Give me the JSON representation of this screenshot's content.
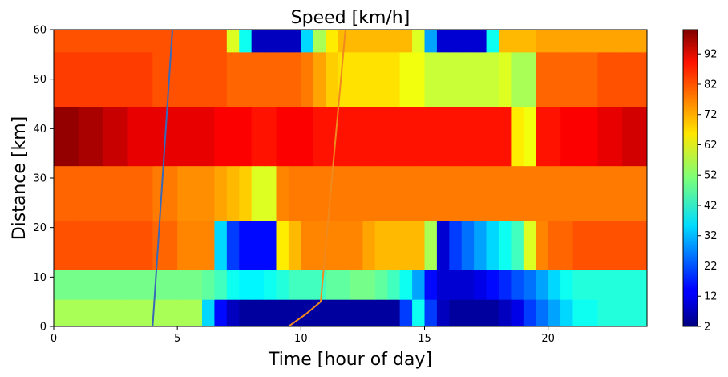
{
  "chart_data": {
    "type": "heatmap",
    "title": "Speed [km/h]",
    "xlabel": "Time [hour of day]",
    "ylabel": "Distance [km]",
    "xlim": [
      0,
      24
    ],
    "ylim": [
      0,
      60
    ],
    "x_ticks": [
      0,
      5,
      10,
      15,
      20
    ],
    "y_ticks": [
      0,
      10,
      20,
      30,
      40,
      50,
      60
    ],
    "colormap": "jet",
    "colorbar": {
      "range": [
        2,
        100
      ],
      "ticks": [
        2,
        12,
        22,
        32,
        42,
        52,
        62,
        72,
        82,
        92
      ]
    },
    "time_segments": [
      0,
      1,
      2,
      3,
      4,
      5,
      6,
      6.5,
      7,
      7.5,
      8,
      8.5,
      9,
      9.5,
      10,
      10.5,
      11,
      11.5,
      12,
      12.5,
      13,
      13.5,
      14,
      14.5,
      15,
      15.5,
      16,
      16.5,
      17,
      17.5,
      18,
      18.5,
      19,
      19.5,
      20,
      20.5,
      21,
      22,
      23,
      24
    ],
    "distance_bands": [
      0,
      5.5,
      11.5,
      21.5,
      32.5,
      44.5,
      55.5,
      60
    ],
    "speed_by_band": [
      {
        "band": "0-5.5 km",
        "values": [
          55,
          55,
          55,
          55,
          55,
          55,
          35,
          15,
          8,
          5,
          5,
          5,
          5,
          5,
          5,
          5,
          5,
          5,
          5,
          5,
          5,
          5,
          20,
          40,
          20,
          8,
          5,
          5,
          5,
          5,
          8,
          12,
          20,
          25,
          30,
          35,
          40,
          42,
          42
        ]
      },
      {
        "band": "5.5-11.5 km",
        "values": [
          50,
          50,
          50,
          50,
          50,
          50,
          48,
          45,
          40,
          38,
          38,
          40,
          42,
          45,
          45,
          45,
          48,
          48,
          50,
          50,
          48,
          45,
          40,
          30,
          15,
          10,
          10,
          10,
          12,
          15,
          18,
          22,
          25,
          30,
          35,
          40,
          42,
          42,
          42
        ]
      },
      {
        "band": "11.5-21.5 km",
        "values": [
          80,
          80,
          80,
          80,
          78,
          75,
          75,
          35,
          20,
          15,
          15,
          15,
          65,
          70,
          75,
          75,
          75,
          75,
          75,
          72,
          70,
          70,
          70,
          70,
          55,
          10,
          20,
          25,
          30,
          35,
          40,
          45,
          60,
          75,
          78,
          78,
          80,
          80,
          80
        ]
      },
      {
        "band": "21.5-32.5 km",
        "values": [
          78,
          78,
          78,
          78,
          76,
          74,
          74,
          72,
          70,
          68,
          60,
          60,
          75,
          76,
          76,
          76,
          76,
          76,
          76,
          76,
          76,
          76,
          76,
          76,
          76,
          76,
          76,
          76,
          76,
          76,
          76,
          76,
          76,
          76,
          76,
          76,
          76,
          76,
          76
        ]
      },
      {
        "band": "32.5-44.5 km",
        "values": [
          98,
          96,
          93,
          90,
          90,
          90,
          90,
          88,
          88,
          88,
          86,
          86,
          88,
          88,
          88,
          86,
          86,
          86,
          86,
          86,
          86,
          86,
          86,
          86,
          86,
          86,
          86,
          86,
          86,
          86,
          86,
          65,
          62,
          86,
          86,
          88,
          88,
          90,
          92
        ]
      },
      {
        "band": "44.5-55.5 km",
        "values": [
          82,
          82,
          82,
          82,
          80,
          80,
          80,
          80,
          78,
          78,
          78,
          78,
          78,
          78,
          76,
          72,
          68,
          66,
          66,
          66,
          66,
          66,
          62,
          62,
          58,
          58,
          58,
          58,
          58,
          58,
          60,
          55,
          55,
          78,
          78,
          78,
          78,
          80,
          80
        ]
      },
      {
        "band": "55.5-60 km",
        "values": [
          80,
          80,
          80,
          80,
          80,
          80,
          80,
          80,
          60,
          40,
          8,
          8,
          8,
          8,
          35,
          55,
          65,
          70,
          70,
          70,
          70,
          70,
          70,
          60,
          30,
          10,
          10,
          10,
          10,
          40,
          70,
          70,
          70,
          72,
          72,
          72,
          72,
          72,
          72
        ]
      }
    ],
    "series": [
      {
        "color": "#3a68b8",
        "x": [
          4.0,
          4.8
        ],
        "y": [
          0,
          60
        ]
      },
      {
        "color": "#f08a1e",
        "x": [
          9.5,
          10.2,
          10.8,
          11.8
        ],
        "y": [
          0,
          2.5,
          5,
          60
        ]
      }
    ]
  }
}
